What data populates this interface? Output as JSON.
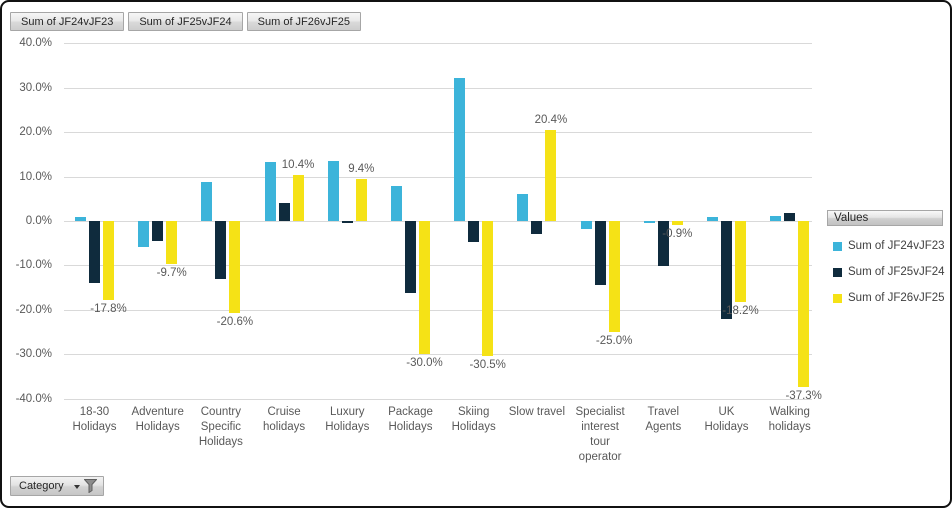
{
  "field_buttons": [
    {
      "label": "Sum of JF24vJF23"
    },
    {
      "label": "Sum of JF25vJF24"
    },
    {
      "label": "Sum of JF26vJF25"
    }
  ],
  "axis_field_button": {
    "label": "Category"
  },
  "legend": {
    "title": "Values",
    "items": [
      {
        "label": "Sum of JF24vJF23",
        "color": "#3cb4da"
      },
      {
        "label": "Sum of JF25vJF24",
        "color": "#0f2b3d"
      },
      {
        "label": "Sum of JF26vJF25",
        "color": "#f5e216"
      }
    ]
  },
  "colors": {
    "series1": "#3cb4da",
    "series2": "#0f2b3d",
    "series3": "#f5e216",
    "gridline": "#d9d9d9",
    "axis_text": "#595959"
  },
  "chart_data": {
    "type": "bar",
    "title": "",
    "categories": [
      "18-30 Holidays",
      "Adventure Holidays",
      "Country Specific Holidays",
      "Cruise holidays",
      "Luxury Holidays",
      "Package Holidays",
      "Skiing Holidays",
      "Slow travel",
      "Specialist interest tour operator",
      "Travel Agents",
      "UK Holidays",
      "Walking holidays"
    ],
    "series": [
      {
        "name": "Sum of JF24vJF23",
        "color": "#3cb4da",
        "data_labels": false,
        "values": [
          0.9,
          -5.9,
          8.9,
          13.2,
          13.6,
          7.9,
          32.2,
          6.2,
          -1.9,
          -0.4,
          0.8,
          1.2
        ]
      },
      {
        "name": "Sum of JF25vJF24",
        "color": "#0f2b3d",
        "data_labels": false,
        "values": [
          -14.0,
          -4.6,
          -13.0,
          4.1,
          -0.5,
          -16.1,
          -4.7,
          -2.9,
          -14.4,
          -10.1,
          -22.1,
          1.9
        ]
      },
      {
        "name": "Sum of JF26vJF25",
        "color": "#f5e216",
        "data_labels": true,
        "values": [
          -17.8,
          -9.7,
          -20.6,
          10.4,
          9.4,
          -30.0,
          -30.5,
          20.4,
          -25.0,
          -0.9,
          -18.2,
          -37.3
        ]
      }
    ],
    "ylabel": "",
    "xlabel": "",
    "ylim": [
      -40,
      40
    ],
    "ytick_step": 10,
    "ytick_format": "0.0%",
    "grid": true,
    "legend_position": "right",
    "legend_title": "Values"
  }
}
